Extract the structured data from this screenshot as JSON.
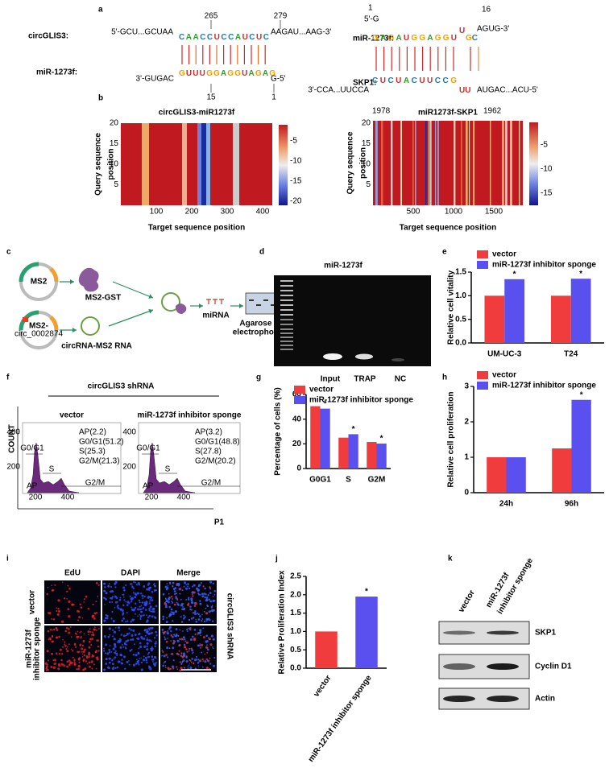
{
  "figure": {
    "panel_labels": [
      "a",
      "b",
      "c",
      "d",
      "e",
      "f",
      "g",
      "h",
      "i",
      "j",
      "k"
    ],
    "a": {
      "left": {
        "top_name": "circGLIS3:",
        "top_5": "5'-GCU...GCUAA",
        "top_pos_start": 265,
        "top_pos_end": 279,
        "top_seq": "CAACCUCCAUCUC",
        "top_3": "AAGAU...AAG-3'",
        "bottom_name": "miR-1273f:",
        "bottom_3": "3'-GUGAC",
        "bottom_seq": "GUUUGGAGGUAGAG",
        "bottom_5": "G-5'",
        "bottom_pos_start": 15,
        "bottom_pos_end": 1
      },
      "right": {
        "top_name": "miR-1273f:",
        "top_5": "5'-G",
        "top_pos_start": 1,
        "top_seq": "GAGAUGGAGGU",
        "top_loop": "U",
        "top_pair": "GC",
        "top_3": "AGUG-3'",
        "top_pos_end": 16,
        "bottom_name": "SKP1:",
        "bottom_5": "3'-CCA...UUCCA",
        "bottom_seq": "CUCUACUUCCG",
        "bottom_loop": "UU",
        "bottom_3": "AUGAC...ACU-5'",
        "bottom_pos_start": 1978,
        "bottom_pos_end": 1962
      }
    },
    "b": {
      "left": {
        "title": "circGLIS3-miR1273f",
        "xlabel": "Target sequence position",
        "ylabel": [
          "Query sequence",
          "position"
        ],
        "xticks": [
          100,
          200,
          300,
          400
        ],
        "yticks": [
          5,
          10,
          15,
          20
        ],
        "colorbar": [
          -5,
          -10,
          -15,
          -20
        ]
      },
      "right": {
        "title": "miR1273f-SKP1",
        "xlabel": "Target sequence position",
        "ylabel": [
          "Query sequence",
          "position"
        ],
        "xticks": [
          500,
          1000,
          1500
        ],
        "yticks": [
          5,
          10,
          15,
          20
        ],
        "colorbar": [
          -5,
          -10,
          -15
        ]
      }
    },
    "c": {
      "plasmid1": "MS2",
      "protein": "MS2-GST",
      "plasmid2": [
        "MS2-",
        "circ_0002874"
      ],
      "rna": "circRNA-MS2 RNA",
      "mirna": "miRNA",
      "gel": [
        "Agarose gel",
        "electrophoresis"
      ]
    },
    "d": {
      "title": "miR-1273f",
      "lanes": [
        "Input",
        "TRAP",
        "NC"
      ]
    },
    "f": {
      "title": "circGLIS3 shRNA",
      "ylabel": "COUNT",
      "xlabel": "P1",
      "plots": [
        {
          "title": "vector",
          "stats": [
            "AP(2.2)",
            "G0/G1(51.2)",
            "S(25.3)",
            "G2/M(21.3)"
          ]
        },
        {
          "title": "miR-1273f inhibitor sponge",
          "stats": [
            "AP(3.2)",
            "G0/G1(48.8)",
            "S(27.8)",
            "G2/M(20.2)"
          ]
        }
      ],
      "yticks": [
        400,
        200
      ],
      "xticks": [
        200,
        400
      ],
      "gates": [
        "G0/G1",
        "S",
        "G2/M",
        "AP"
      ]
    },
    "i": {
      "columns": [
        "EdU",
        "DAPI",
        "Merge"
      ],
      "rows": [
        [
          "vector"
        ],
        [
          "miR-1273f",
          "inhibitor sponge"
        ]
      ],
      "side": "circGLIS3 shRNA",
      "scale": "100µm"
    },
    "k": {
      "lanes": [
        [
          "vector"
        ],
        [
          "miR-1273f",
          "inhibitor sponge"
        ]
      ],
      "proteins": [
        "SKP1",
        "Cyclin D1",
        "Actin"
      ]
    }
  },
  "chart_data": [
    {
      "type": "bar",
      "ylabel": "Relative cell  vitality",
      "categories": [
        "UM-UC-3",
        "T24"
      ],
      "series": [
        {
          "name": "vector",
          "color": "#f03c3c",
          "values": [
            1.0,
            1.0
          ]
        },
        {
          "name": "miR-1273f inhibitor sponge",
          "color": "#5a50f0",
          "values": [
            1.35,
            1.36
          ]
        }
      ],
      "ylim": [
        0,
        1.5
      ],
      "yticks": [
        {
          "value": 0,
          "label": "0.0"
        },
        {
          "value": 0.5,
          "label": "0.5"
        },
        {
          "value": 1,
          "label": "1.0"
        },
        {
          "value": 1.5,
          "label": "1.5"
        }
      ],
      "annotations": [
        {
          "text": "*",
          "x": "UM-UC-3"
        },
        {
          "text": "*",
          "x": "T24"
        }
      ]
    },
    {
      "type": "bar",
      "ylabel": "Percentage of cells (%)",
      "categories": [
        "G0G1",
        "S",
        "G2M"
      ],
      "series": [
        {
          "name": "vector",
          "color": "#f03c3c",
          "values": [
            50.5,
            25,
            21.5
          ]
        },
        {
          "name": "miR-1273f inhibitor sponge",
          "color": "#5a50f0",
          "values": [
            48.5,
            27.8,
            20.2
          ]
        }
      ],
      "ylim": [
        0,
        60
      ],
      "yticks": [
        0,
        20,
        40,
        60
      ],
      "annotations": [
        {
          "text": "*",
          "x": "G0G1"
        },
        {
          "text": "*",
          "x": "S"
        },
        {
          "text": "*",
          "x": "G2M"
        }
      ]
    },
    {
      "type": "bar",
      "ylabel": "Relative cell  proliferation",
      "categories": [
        "24h",
        "96h"
      ],
      "series": [
        {
          "name": "vector",
          "color": "#f03c3c",
          "values": [
            1.0,
            1.25
          ]
        },
        {
          "name": "miR-1273f inhibitor sponge",
          "color": "#5a50f0",
          "values": [
            1.0,
            2.62
          ]
        }
      ],
      "ylim": [
        0,
        3
      ],
      "yticks": [
        0,
        1,
        2,
        3
      ],
      "annotations": [
        {
          "text": "*",
          "x": "96h"
        }
      ]
    },
    {
      "type": "bar",
      "ylabel": "Relative Proliferation Index",
      "categories": [
        "vector",
        "miR-1273f inhibitor sponge"
      ],
      "values": [
        1.0,
        1.95
      ],
      "colors": [
        "#f03c3c",
        "#5a50f0"
      ],
      "ylim": [
        0,
        2.5
      ],
      "yticks": [
        {
          "value": 0,
          "label": "0.0"
        },
        {
          "value": 0.5,
          "label": "0.5"
        },
        {
          "value": 1,
          "label": "1.0"
        },
        {
          "value": 1.5,
          "label": "1.5"
        },
        {
          "value": 2,
          "label": "2.0"
        },
        {
          "value": 2.5,
          "label": "2.5"
        }
      ],
      "annotations": [
        {
          "text": "*",
          "x": "miR-1273f inhibitor sponge"
        }
      ]
    }
  ]
}
